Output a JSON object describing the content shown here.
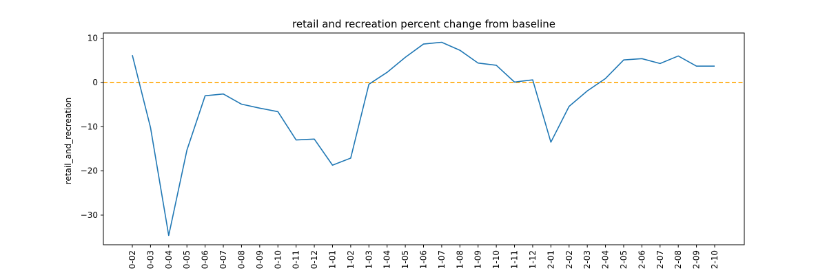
{
  "chart_data": {
    "type": "line",
    "title": "retail and recreation percent change from baseline",
    "xlabel": "",
    "ylabel": "retail_and_recreation",
    "categories": [
      "0-02",
      "0-03",
      "0-04",
      "0-05",
      "0-06",
      "0-07",
      "0-08",
      "0-09",
      "0-10",
      "0-11",
      "0-12",
      "1-01",
      "1-02",
      "1-03",
      "1-04",
      "1-05",
      "1-06",
      "1-07",
      "1-08",
      "1-09",
      "1-10",
      "1-11",
      "1-12",
      "2-01",
      "2-02",
      "2-03",
      "2-04",
      "2-05",
      "2-06",
      "2-07",
      "2-08",
      "2-09",
      "2-10"
    ],
    "values": [
      6.2,
      -10.2,
      -34.6,
      -15.3,
      -3.0,
      -2.6,
      -4.9,
      -5.8,
      -6.6,
      -13.0,
      -12.8,
      -18.7,
      -17.1,
      -0.4,
      2.3,
      5.7,
      8.7,
      9.1,
      7.3,
      4.4,
      3.9,
      0.1,
      0.6,
      -13.5,
      -5.4,
      -1.9,
      0.9,
      5.1,
      5.4,
      4.3,
      6.0,
      3.7,
      3.7
    ],
    "ylim": [
      -36.7,
      11.2
    ],
    "yticks": [
      10,
      0,
      -10,
      -20,
      -30
    ],
    "reference_line": {
      "y": 0,
      "color": "#ffa500",
      "style": "dashed"
    },
    "line_color": "#1f77b4",
    "grid": false,
    "legend": false
  }
}
